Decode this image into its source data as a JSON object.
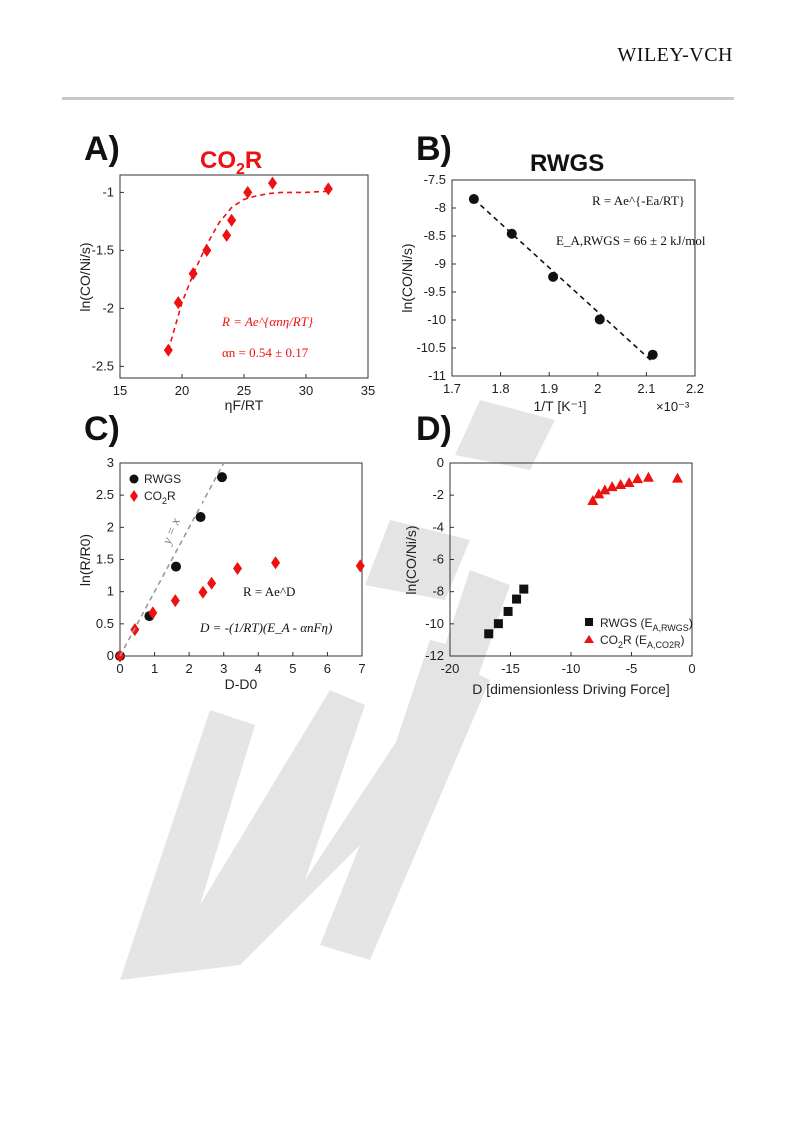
{
  "header": {
    "publisher": "WILEY-VCH"
  },
  "colors": {
    "red": "#ee1111",
    "black": "#111111",
    "dash": "#999999"
  },
  "chart_data": [
    {
      "panel": "A)",
      "type": "scatter",
      "title": "CO2R",
      "title_main": "CO",
      "title_sub": "2",
      "title_end": "R",
      "xlabel": "ηF/RT",
      "ylabel": "ln(CO/Ni/s)",
      "xlim": [
        15,
        35
      ],
      "ylim": [
        -2.6,
        -0.85
      ],
      "xticks": [
        15,
        20,
        25,
        30,
        35
      ],
      "yticks": [
        -2.5,
        -2,
        -1.5,
        -1
      ],
      "yticklabels": [
        "-2.5",
        "-2",
        "-1.5",
        "-1"
      ],
      "grid": false,
      "series": [
        {
          "color": "#ee1111",
          "marker": "diamond",
          "x": [
            18.9,
            19.7,
            20.9,
            22.0,
            23.6,
            24.0,
            25.3,
            27.3,
            31.8
          ],
          "y": [
            -2.36,
            -1.95,
            -1.7,
            -1.5,
            -1.37,
            -1.24,
            -1.0,
            -0.92,
            -0.97
          ]
        },
        {
          "style": "dashed",
          "color": "#ee1111",
          "fit": true,
          "x": [
            18.9,
            20,
            21,
            22,
            23,
            24,
            25,
            26,
            27,
            28,
            29,
            30,
            31.8
          ],
          "y": [
            -2.36,
            -1.95,
            -1.68,
            -1.45,
            -1.26,
            -1.13,
            -1.06,
            -1.03,
            -1.01,
            -1.0,
            -1.0,
            -1.0,
            -0.99
          ]
        }
      ],
      "annotations": [
        "R = Ae^{αnη/RT}",
        "αn = 0.54 ± 0.17"
      ]
    },
    {
      "panel": "B)",
      "type": "scatter",
      "title": "RWGS",
      "xlabel": "1/T [K⁻¹]",
      "ylabel": "ln(CO/Ni/s)",
      "xlim": [
        1.7,
        2.2
      ],
      "ylim": [
        -11,
        -7.5
      ],
      "xticks": [
        1.7,
        1.8,
        1.9,
        2.0,
        2.1,
        2.2
      ],
      "xticklabels": [
        "1.7",
        "1.8",
        "1.9",
        "2",
        "2.1",
        "2.2"
      ],
      "yticks": [
        -11,
        -10.5,
        -10,
        -9.5,
        -9,
        -8.5,
        -8,
        -7.5
      ],
      "yticklabels": [
        "-11",
        "-10.5",
        "-10",
        "-9.5",
        "-9",
        "-8.5",
        "-8",
        "-7.5"
      ],
      "x_scale_note": "×10⁻³",
      "grid": false,
      "series": [
        {
          "color": "#111111",
          "marker": "circle",
          "x": [
            1.745,
            1.823,
            1.908,
            2.004,
            2.113
          ],
          "y": [
            -7.84,
            -8.46,
            -9.23,
            -9.99,
            -10.62
          ]
        },
        {
          "style": "dashed",
          "color": "#111111",
          "fit": true,
          "x": [
            1.745,
            2.113
          ],
          "y": [
            -7.84,
            -10.75
          ]
        }
      ],
      "annotations": [
        "R = Ae^{-Ea/RT}",
        "E_A,RWGS = 66 ± 2 kJ/mol"
      ]
    },
    {
      "panel": "C)",
      "type": "scatter",
      "xlabel": "D-D0",
      "ylabel": "ln(R/R0)",
      "xlim": [
        0,
        7
      ],
      "ylim": [
        0,
        3
      ],
      "xticks": [
        0,
        1,
        2,
        3,
        4,
        5,
        6,
        7
      ],
      "yticks": [
        0,
        0.5,
        1,
        1.5,
        2,
        2.5,
        3
      ],
      "yticklabels": [
        "0",
        "0.5",
        "1",
        "1.5",
        "2",
        "2.5",
        "3"
      ],
      "grid": false,
      "legend_position": "top-left",
      "series": [
        {
          "name": "RWGS",
          "color": "#111111",
          "marker": "circle",
          "x": [
            0.0,
            0.85,
            1.62,
            2.33,
            2.95
          ],
          "y": [
            0.0,
            0.62,
            1.39,
            2.16,
            2.78
          ]
        },
        {
          "name": "CO2R",
          "color": "#ee1111",
          "marker": "diamond",
          "x": [
            0.0,
            0.43,
            0.95,
            1.6,
            2.4,
            2.65,
            3.4,
            4.5,
            6.95
          ],
          "y": [
            0.0,
            0.41,
            0.67,
            0.86,
            0.99,
            1.13,
            1.36,
            1.45,
            1.4
          ]
        },
        {
          "style": "dashed",
          "color": "#999999",
          "label": "y = x",
          "x": [
            0,
            3.0
          ],
          "y": [
            0,
            3.0
          ]
        }
      ],
      "legend": [
        {
          "main": "RWGS",
          "sub": ""
        },
        {
          "main": "CO",
          "sub": "2",
          "end": "R"
        }
      ],
      "annotations": [
        "R = Ae^D",
        "D = -(1/RT)(E_A - αnFη)",
        "y = x"
      ]
    },
    {
      "panel": "D)",
      "type": "scatter",
      "xlabel": "D [dimensionless Driving Force]",
      "ylabel": "ln(CO/Ni/s)",
      "xlim": [
        -20,
        0
      ],
      "ylim": [
        -12,
        0
      ],
      "xticks": [
        -20,
        -15,
        -10,
        -5,
        0
      ],
      "yticks": [
        -12,
        -10,
        -8,
        -6,
        -4,
        -2,
        0
      ],
      "grid": false,
      "legend_position": "bottom-right",
      "series": [
        {
          "name": "RWGS (EA,RWGS)",
          "color": "#111111",
          "marker": "square",
          "x": [
            -16.8,
            -16.0,
            -15.2,
            -14.5,
            -13.9
          ],
          "y": [
            -10.62,
            -9.99,
            -9.23,
            -8.46,
            -7.84
          ]
        },
        {
          "name": "CO2R (EA,CO2R)",
          "color": "#ee1111",
          "marker": "triangle",
          "x": [
            -8.2,
            -7.7,
            -7.2,
            -6.6,
            -5.9,
            -5.2,
            -4.5,
            -3.6,
            -1.2
          ],
          "y": [
            -2.36,
            -1.95,
            -1.7,
            -1.5,
            -1.37,
            -1.24,
            -1.0,
            -0.92,
            -0.97
          ]
        }
      ],
      "legend": [
        {
          "main": "RWGS (E",
          "sub": "A,RWGS",
          "end": ")"
        },
        {
          "main": "CO",
          "sub": "2",
          "end": "R (E",
          "sub2": "A,CO2R",
          "end2": ")"
        }
      ]
    }
  ]
}
